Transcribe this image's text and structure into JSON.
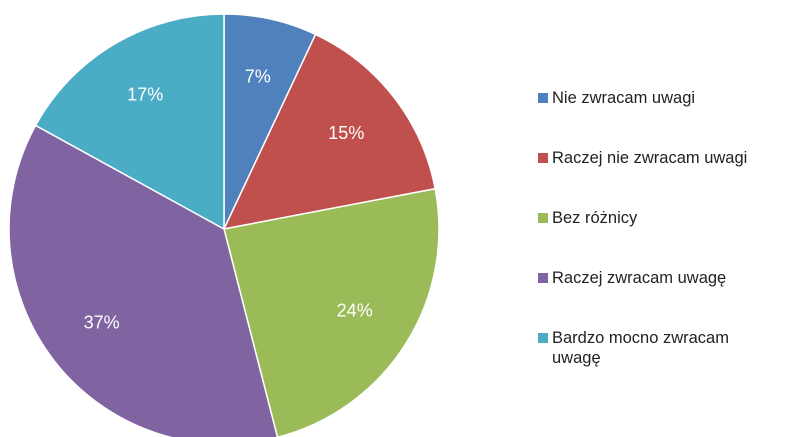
{
  "chart_data": {
    "type": "pie",
    "categories": [
      "Nie zwracam uwagi",
      "Raczej nie zwracam uwagi",
      "Bez różnicy",
      "Raczej zwracam uwagę",
      "Bardzo mocno zwracam uwagę"
    ],
    "values": [
      7,
      15,
      24,
      37,
      17
    ],
    "value_labels": [
      "7%",
      "15%",
      "24%",
      "37%",
      "17%"
    ],
    "colors": [
      "#4f81bd",
      "#c0504d",
      "#9bbb59",
      "#8064a2",
      "#4bacc6"
    ],
    "legend": "right"
  }
}
